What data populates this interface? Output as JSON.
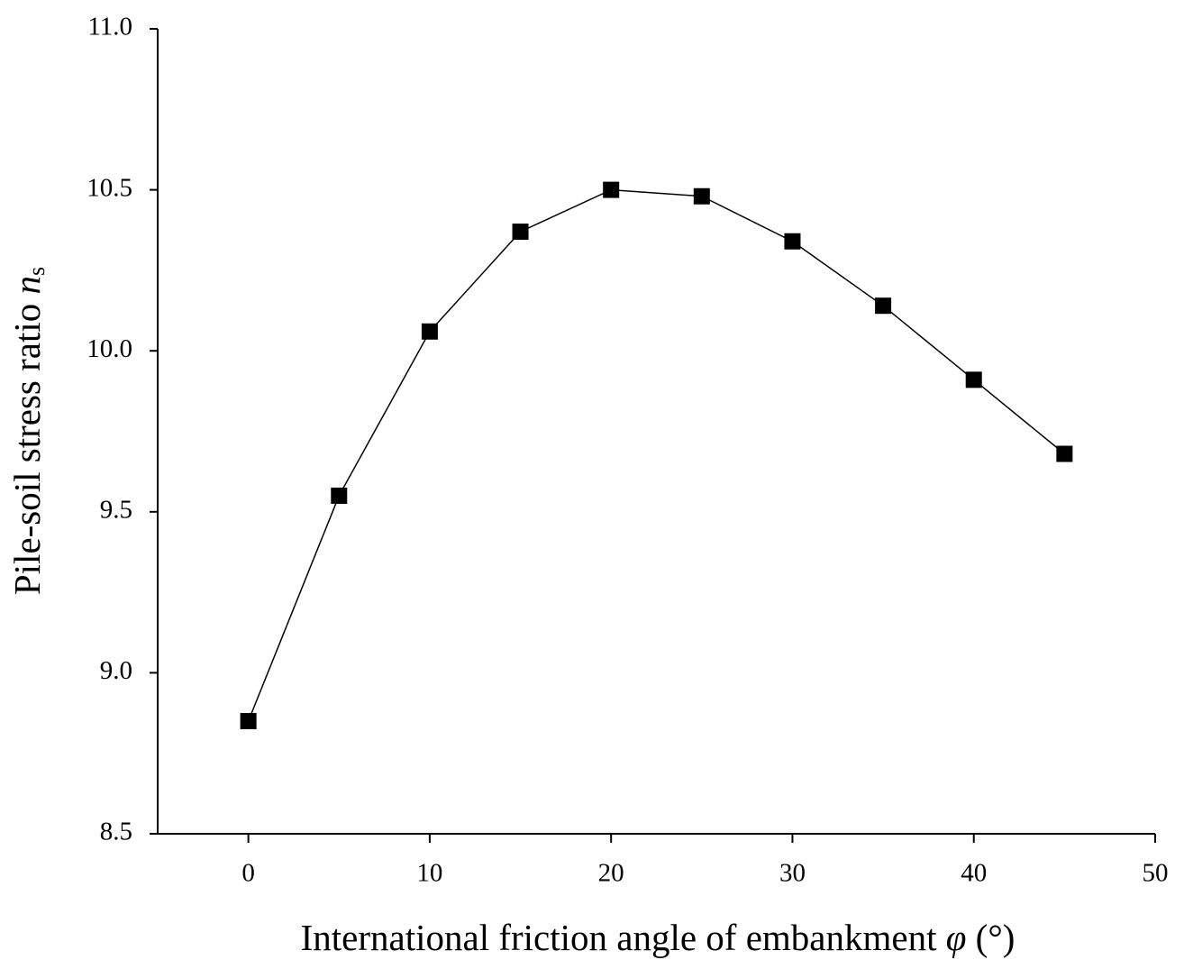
{
  "chart_data": {
    "type": "line",
    "x_label": {
      "text": "International friction angle of embankment",
      "symbol": "φ",
      "unit": "(°)"
    },
    "y_label": {
      "text": "Pile-soil stress ratio",
      "symbol": "n",
      "subscript": "s"
    },
    "x": [
      0,
      5,
      10,
      15,
      20,
      25,
      30,
      35,
      40,
      45
    ],
    "series": [
      {
        "color": "#000000",
        "values": [
          8.85,
          9.55,
          10.06,
          10.37,
          10.5,
          10.48,
          10.34,
          10.14,
          9.91,
          9.68
        ]
      }
    ],
    "xlim": [
      -5,
      50
    ],
    "xticks": [
      0,
      10,
      20,
      30,
      40,
      50
    ],
    "ylim": [
      8.5,
      11.0
    ],
    "yticks": [
      {
        "value": 8.5,
        "label": "8.5"
      },
      {
        "value": 9.0,
        "label": "9.0"
      },
      {
        "value": 9.5,
        "label": "9.5"
      },
      {
        "value": 10.0,
        "label": "10.0"
      },
      {
        "value": 10.5,
        "label": "10.5"
      },
      {
        "value": 11.0,
        "label": "11.0"
      }
    ],
    "grid": false
  }
}
